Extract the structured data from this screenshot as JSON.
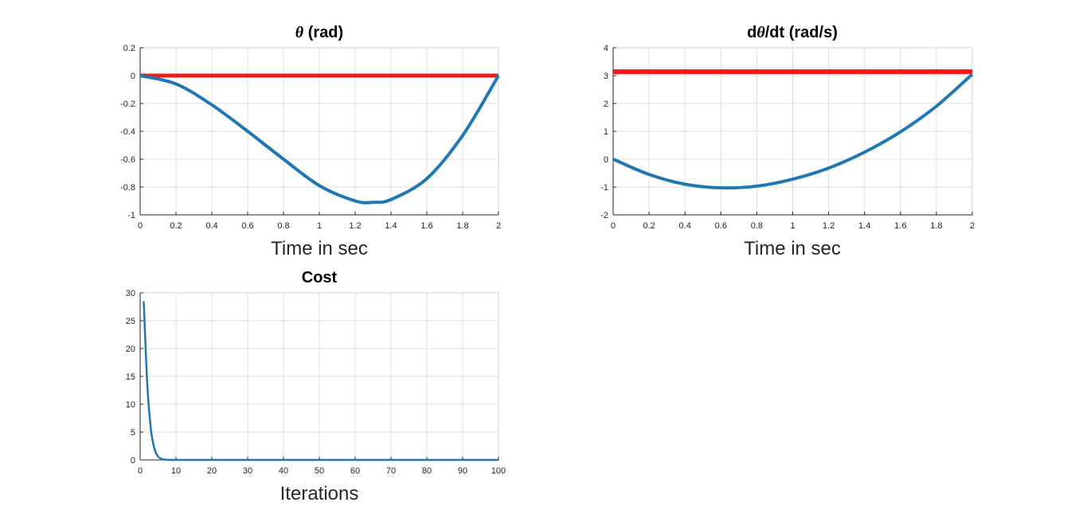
{
  "chart_data": [
    {
      "type": "line",
      "title": "θ (rad)",
      "title_parts": {
        "symbol": "θ",
        "rest": " (rad)"
      },
      "xlabel": "Time in sec",
      "ylabel": "",
      "xlim": [
        0,
        2
      ],
      "ylim": [
        -1,
        0.2
      ],
      "xticks": [
        0,
        0.2,
        0.4,
        0.6,
        0.8,
        1,
        1.2,
        1.4,
        1.6,
        1.8,
        2
      ],
      "yticks": [
        -1,
        -0.8,
        -0.6,
        -0.4,
        -0.2,
        0,
        0.2
      ],
      "grid": true,
      "series": [
        {
          "color": "#ee1c1c",
          "x": [
            0,
            2
          ],
          "y": [
            0,
            0
          ]
        },
        {
          "color": "#1f77b4",
          "x": [
            0,
            0.2,
            0.4,
            0.6,
            0.8,
            1.0,
            1.2,
            1.3,
            1.4,
            1.6,
            1.8,
            2.0
          ],
          "y": [
            0,
            -0.06,
            -0.21,
            -0.4,
            -0.6,
            -0.79,
            -0.9,
            -0.91,
            -0.89,
            -0.74,
            -0.43,
            0
          ]
        }
      ]
    },
    {
      "type": "line",
      "title": "dθ/dt (rad/s)",
      "title_parts": {
        "prefix": "d",
        "symbol": "θ",
        "rest": "/dt (rad/s)"
      },
      "xlabel": "Time in sec",
      "ylabel": "",
      "xlim": [
        0,
        2
      ],
      "ylim": [
        -2,
        4
      ],
      "xticks": [
        0,
        0.2,
        0.4,
        0.6,
        0.8,
        1,
        1.2,
        1.4,
        1.6,
        1.8,
        2
      ],
      "yticks": [
        -2,
        -1,
        0,
        1,
        2,
        3,
        4
      ],
      "grid": true,
      "series": [
        {
          "color": "#ee1c1c",
          "x": [
            0,
            2
          ],
          "y": [
            3.14,
            3.14
          ]
        },
        {
          "color": "#1f77b4",
          "x": [
            0,
            0.2,
            0.4,
            0.6,
            0.8,
            1.0,
            1.2,
            1.4,
            1.6,
            1.8,
            2.0
          ],
          "y": [
            0,
            -0.55,
            -0.9,
            -1.03,
            -0.97,
            -0.72,
            -0.32,
            0.25,
            0.98,
            1.9,
            3.05
          ]
        }
      ]
    },
    {
      "type": "line",
      "title": "Cost",
      "xlabel": "Iterations",
      "ylabel": "",
      "xlim": [
        0,
        100
      ],
      "ylim": [
        0,
        30
      ],
      "xticks": [
        0,
        10,
        20,
        30,
        40,
        50,
        60,
        70,
        80,
        90,
        100
      ],
      "yticks": [
        0,
        5,
        10,
        15,
        20,
        25,
        30
      ],
      "grid": true,
      "series": [
        {
          "color": "#1f77b4",
          "x": [
            1,
            2,
            3,
            4,
            5,
            6,
            7,
            8,
            10,
            20,
            50,
            100
          ],
          "y": [
            28.5,
            13.5,
            5.5,
            2.0,
            0.6,
            0.2,
            0.05,
            0.02,
            0,
            0,
            0,
            0
          ]
        }
      ]
    }
  ]
}
